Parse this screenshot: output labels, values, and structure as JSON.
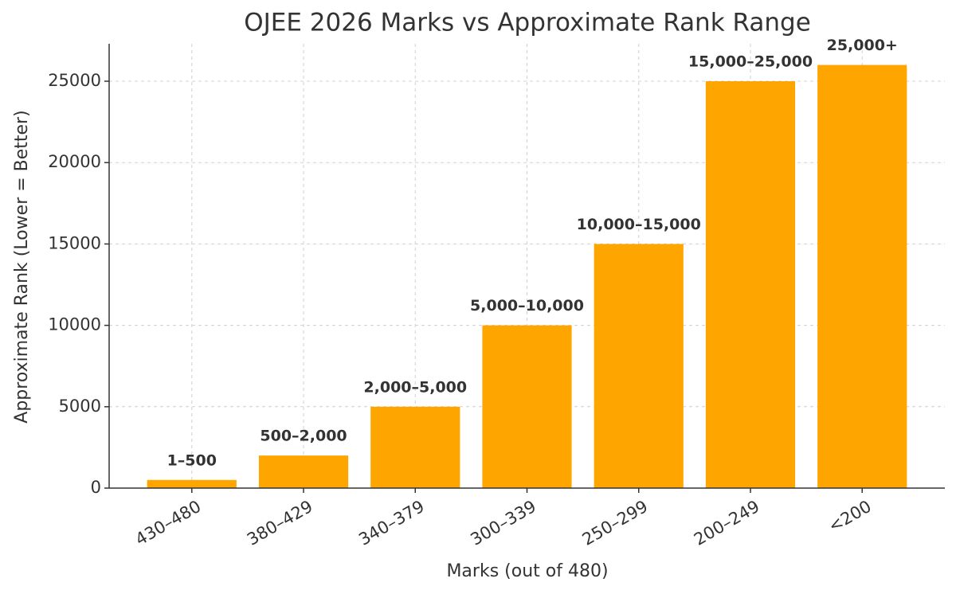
{
  "chart_data": {
    "type": "bar",
    "title": "OJEE 2026 Marks vs Approximate Rank Range",
    "x_label": "Marks (out of 480)",
    "y_label": "Approximate Rank (Lower = Better)",
    "categories": [
      "430–480",
      "380–429",
      "340–379",
      "300–339",
      "250–299",
      "200–249",
      "<200"
    ],
    "values": [
      500,
      2000,
      5000,
      10000,
      15000,
      25000,
      26000
    ],
    "value_labels": [
      "1–500",
      "500–2,000",
      "2,000–5,000",
      "5,000–10,000",
      "10,000–15,000",
      "15,000–25,000",
      "25,000+"
    ],
    "color": "#FFA500",
    "ylim": [
      0,
      27300
    ],
    "yticks": [
      0,
      5000,
      10000,
      15000,
      20000,
      25000
    ],
    "grid": true
  }
}
